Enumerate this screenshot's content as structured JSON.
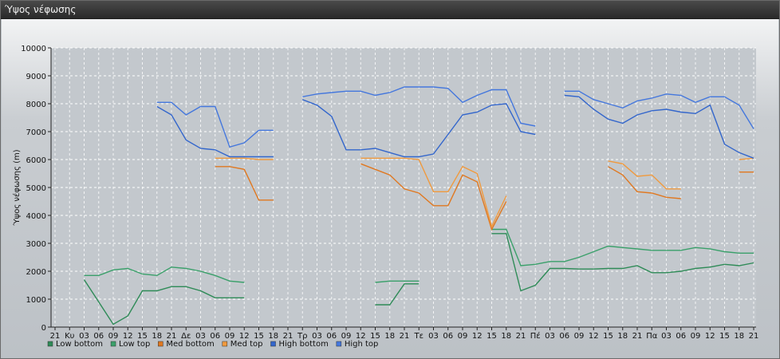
{
  "window": {
    "title": "Ύψος νέφωσης"
  },
  "chart_data": {
    "type": "line",
    "title": "",
    "xlabel": "",
    "ylabel": "Ύψος νέφωσης (m)",
    "ylim": [
      0,
      10000
    ],
    "yticks": [
      "0",
      "1000",
      "2000",
      "3000",
      "4000",
      "5000",
      "6000",
      "7000",
      "8000",
      "9000",
      "10000"
    ],
    "xticks": [
      "21",
      "Κυ",
      "03",
      "06",
      "09",
      "12",
      "15",
      "18",
      "21",
      "Δε",
      "03",
      "06",
      "09",
      "12",
      "15",
      "18",
      "21",
      "Τρ",
      "03",
      "06",
      "09",
      "12",
      "15",
      "18",
      "21",
      "Τε",
      "03",
      "06",
      "09",
      "12",
      "15",
      "18",
      "21",
      "Πέ",
      "03",
      "06",
      "09",
      "12",
      "15",
      "18",
      "21",
      "Πα",
      "03",
      "06",
      "09",
      "12",
      "15",
      "18",
      "21"
    ],
    "grid": true,
    "legend_position": "bottom-left",
    "series": [
      {
        "name": "Low bottom",
        "color": "#2e8b57",
        "values": [
          null,
          null,
          1700,
          900,
          100,
          400,
          1300,
          1300,
          1450,
          1450,
          1300,
          1050,
          1050,
          1050,
          null,
          null,
          null,
          null,
          null,
          null,
          null,
          null,
          800,
          800,
          1550,
          1550,
          null,
          null,
          null,
          null,
          3350,
          3350,
          1300,
          1500,
          2100,
          2100,
          2080,
          2080,
          2100,
          2100,
          2200,
          1950,
          1950,
          2000,
          2100,
          2150,
          2250,
          2200,
          2300
        ]
      },
      {
        "name": "Low top",
        "color": "#3aa06a",
        "values": [
          null,
          null,
          1850,
          1850,
          2050,
          2100,
          1900,
          1850,
          2150,
          2100,
          2000,
          1850,
          1650,
          1600,
          null,
          null,
          null,
          null,
          null,
          null,
          null,
          null,
          1600,
          1650,
          1650,
          1650,
          null,
          null,
          null,
          null,
          3500,
          3500,
          2200,
          2250,
          2350,
          2350,
          2500,
          2700,
          2900,
          2850,
          2800,
          2750,
          2750,
          2750,
          2850,
          2800,
          2700,
          2650,
          2650
        ]
      },
      {
        "name": "Med bottom",
        "color": "#e07820",
        "values": [
          null,
          null,
          null,
          null,
          null,
          null,
          null,
          null,
          null,
          null,
          null,
          5750,
          5750,
          5650,
          4550,
          4550,
          null,
          null,
          null,
          null,
          null,
          5850,
          5650,
          5450,
          4950,
          4800,
          4350,
          4350,
          5450,
          5200,
          3500,
          4500,
          null,
          null,
          null,
          null,
          null,
          null,
          5750,
          5450,
          4850,
          4800,
          4650,
          4600,
          null,
          null,
          null,
          5550,
          5550
        ]
      },
      {
        "name": "Med top",
        "color": "#f09a3e",
        "values": [
          null,
          null,
          null,
          null,
          null,
          null,
          null,
          null,
          null,
          null,
          null,
          6050,
          6050,
          6050,
          6000,
          6000,
          null,
          null,
          null,
          null,
          null,
          6050,
          6050,
          6050,
          6050,
          6000,
          4850,
          4850,
          5750,
          5500,
          3600,
          4700,
          null,
          null,
          null,
          null,
          null,
          null,
          5950,
          5850,
          5400,
          5450,
          4950,
          4950,
          null,
          null,
          null,
          6000,
          6050
        ]
      },
      {
        "name": "High bottom",
        "color": "#3366cc",
        "values": [
          null,
          null,
          null,
          null,
          null,
          null,
          null,
          7900,
          7600,
          6700,
          6400,
          6350,
          6100,
          6100,
          6100,
          6100,
          null,
          8150,
          7950,
          7550,
          6350,
          6350,
          6400,
          6250,
          6100,
          6100,
          6200,
          6900,
          7600,
          7700,
          7950,
          8000,
          7000,
          6900,
          null,
          8300,
          8250,
          7800,
          7450,
          7300,
          7600,
          7750,
          7800,
          7700,
          7650,
          7950,
          6550,
          6250,
          6050
        ]
      },
      {
        "name": "High top",
        "color": "#4477dd",
        "values": [
          null,
          null,
          null,
          null,
          null,
          null,
          null,
          8050,
          8050,
          7600,
          7900,
          7900,
          6450,
          6600,
          7050,
          7050,
          null,
          8250,
          8350,
          8400,
          8450,
          8450,
          8300,
          8400,
          8600,
          8600,
          8600,
          8550,
          8050,
          8300,
          8500,
          8500,
          7300,
          7200,
          null,
          8450,
          8450,
          8150,
          8000,
          7850,
          8100,
          8200,
          8350,
          8300,
          8050,
          8250,
          8250,
          7950,
          7100
        ]
      }
    ]
  }
}
